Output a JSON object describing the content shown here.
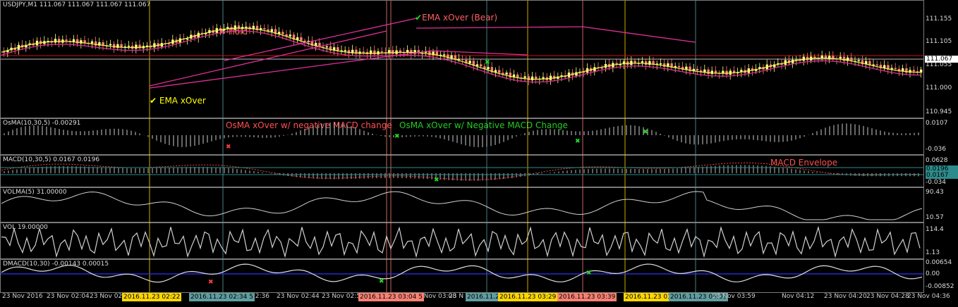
{
  "main": {
    "title": "USDJPY,M1  111.067 111.067 111.067 111.067",
    "scale": [
      "111.155",
      "111.105",
      "111.055",
      "111.000",
      "110.945"
    ],
    "price_tag": "111.067",
    "annotations": {
      "hold": "Hold",
      "ema_xover": "EMA xOver",
      "ema_xover_bear": "EMA xOver (Bear)"
    }
  },
  "osma": {
    "title": "OsMA(10,30,5) -0.00291",
    "scale": [
      "0.0107",
      "-0.036"
    ],
    "annotations": {
      "neg": "OsMA xOver w/ negative MACD change",
      "pos": "OsMA xOver w/ Negative MACD Change"
    }
  },
  "macd": {
    "title": "MACD(10,30,5) 0.0167 0.0196",
    "scale": [
      "0.0628",
      "-0.034"
    ],
    "tags": [
      "0.0196",
      "0.0167"
    ],
    "annotation": "MACD Envelope"
  },
  "volma": {
    "title": "VOLMA(5) 31.00000",
    "scale": [
      "90.43",
      "10.57"
    ]
  },
  "vol": {
    "title": "VOL 19.00000",
    "scale": [
      "114.4",
      "1.13"
    ]
  },
  "dmacd": {
    "title": "DMACD(10,30) -0.00143 0.00015",
    "scale": [
      "0.00654",
      "0.00",
      "-0.00852"
    ]
  },
  "time_axis": {
    "labels": [
      "23 Nov 2016",
      "23 Nov 02:04",
      "23 Nov 02:",
      "02:36",
      "23 Nov 02:44",
      "23 Nov 02:52",
      "0 Nov 03:08",
      "23 N",
      "23 Nov 03:59",
      "Nov 04:12",
      "23 Nov 04:20",
      "23 Nov 04:28",
      "23 Nov 04:36"
    ],
    "highlights": [
      {
        "text": "2016.11.23 02:22",
        "color": "#ffd700"
      },
      {
        "text": "2016.11.23 02:34 5",
        "color": "#5f9ea0"
      },
      {
        "text": "2016.11.23 03:04 5",
        "color": "#fa8072"
      },
      {
        "text": "2016.11.2",
        "color": "#5f9ea0"
      },
      {
        "text": "2016.11.23 03:29",
        "color": "#ffd700"
      },
      {
        "text": "2016.11.23 03:39",
        "color": "#fa8072"
      },
      {
        "text": "2016.11.23 03",
        "color": "#ffd700"
      },
      {
        "text": "2016.11.23 04:09",
        "color": "#5f9ea0"
      }
    ]
  },
  "colors": {
    "bull": "#ffff80",
    "bear": "#fa8072",
    "ema": "#e0309a",
    "volume_line": "#d0d0d0",
    "signal_line": "#3030ff",
    "level": "#d01010",
    "accent_ok": "#ffff00",
    "green_mark": "#22dd22",
    "red_mark": "#ff4040"
  }
}
